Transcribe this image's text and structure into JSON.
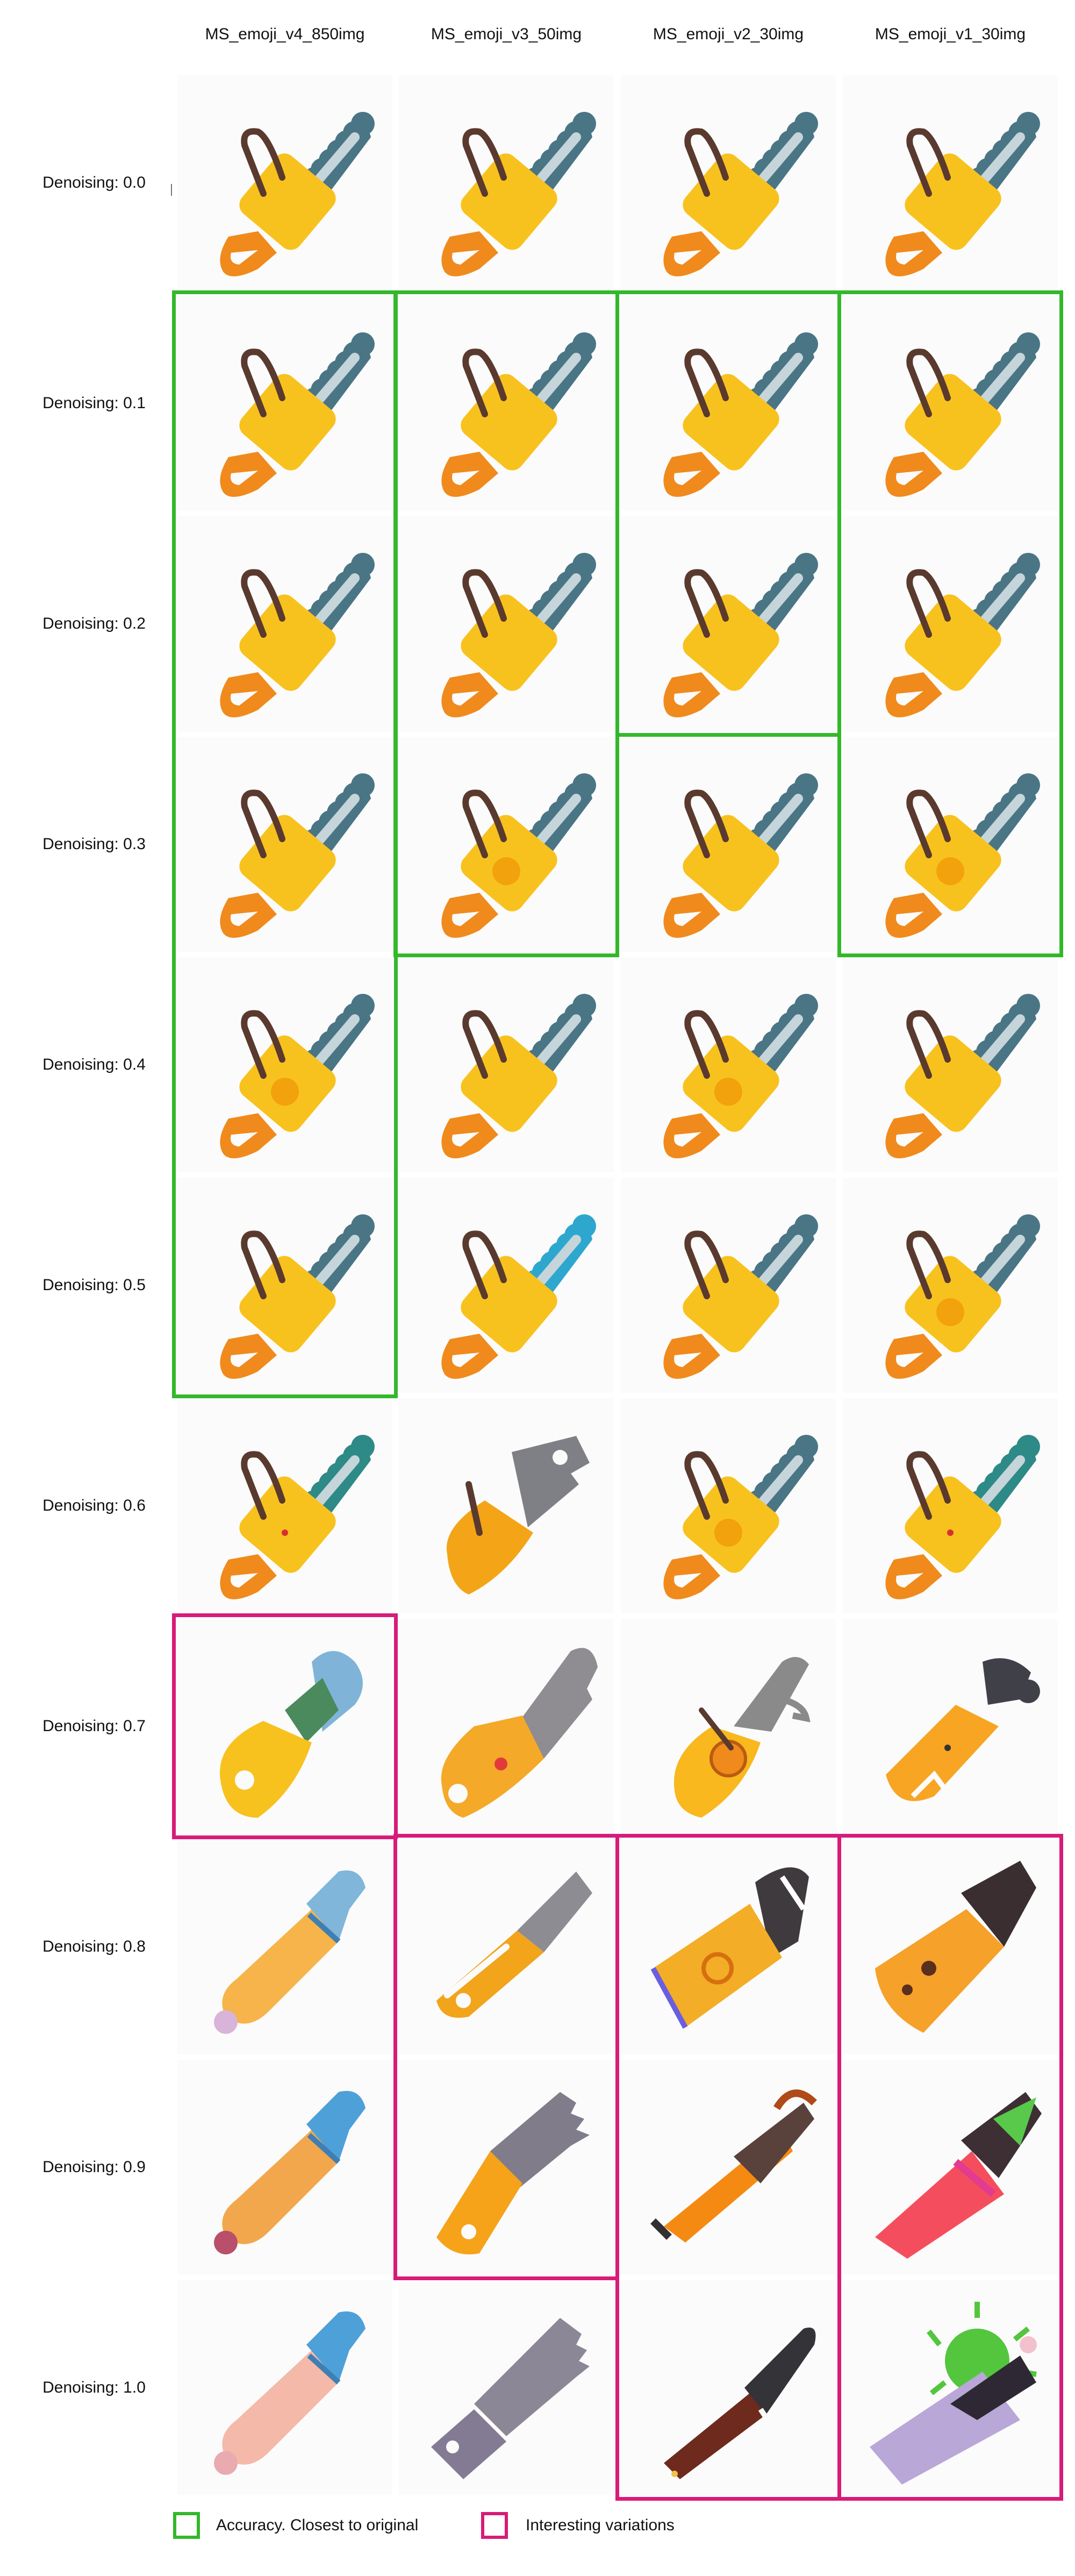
{
  "columns": [
    "MS_emoji_v4_850img",
    "MS_emoji_v3_50img",
    "MS_emoji_v2_30img",
    "MS_emoji_v1_30img"
  ],
  "rows": [
    "Denoising: 0.0",
    "Denoising: 0.1",
    "Denoising: 0.2",
    "Denoising: 0.3",
    "Denoising: 0.4",
    "Denoising: 0.5",
    "Denoising: 0.6",
    "Denoising: 0.7",
    "Denoising: 0.8",
    "Denoising: 0.9",
    "Denoising: 1.0"
  ],
  "icons": [
    [
      "chainsaw-icon",
      "chainsaw-icon",
      "chainsaw-icon",
      "chainsaw-icon"
    ],
    [
      "chainsaw-icon",
      "chainsaw-icon",
      "chainsaw-icon",
      "chainsaw-icon"
    ],
    [
      "chainsaw-icon",
      "chainsaw-icon",
      "chainsaw-icon",
      "chainsaw-icon"
    ],
    [
      "chainsaw-icon",
      "chainsaw-icon",
      "chainsaw-icon",
      "chainsaw-icon"
    ],
    [
      "chainsaw-icon",
      "chainsaw-icon",
      "chainsaw-icon",
      "chainsaw-icon"
    ],
    [
      "chainsaw-icon",
      "chainsaw-icon",
      "chainsaw-icon",
      "chainsaw-icon"
    ],
    [
      "distorted-chainsaw-icon",
      "cleaver-saw-icon",
      "chainsaw-icon",
      "distorted-chainsaw-icon"
    ],
    [
      "blob-tool-icon",
      "cleaver-icon",
      "wrench-saw-icon",
      "pipe-tool-icon"
    ],
    [
      "pencil-tool-icon",
      "utility-knife-icon",
      "folded-tool-icon",
      "block-tool-icon"
    ],
    [
      "pencil-tool-icon",
      "handsaw-icon",
      "hacksaw-icon",
      "red-arrow-tool-icon"
    ],
    [
      "pencil-tool-icon",
      "handsaw-icon",
      "knife-icon",
      "virus-cutter-icon"
    ]
  ],
  "boxes": [
    {
      "kind": "accuracy",
      "col": 0,
      "row_start": 1,
      "row_end": 5
    },
    {
      "kind": "accuracy",
      "col": 1,
      "row_start": 1,
      "row_end": 3
    },
    {
      "kind": "accuracy",
      "col": 2,
      "row_start": 1,
      "row_end": 2
    },
    {
      "kind": "accuracy",
      "col": 3,
      "row_start": 1,
      "row_end": 3
    },
    {
      "kind": "interesting",
      "col": 0,
      "row_start": 7,
      "row_end": 7
    },
    {
      "kind": "interesting",
      "col": 1,
      "row_start": 8,
      "row_end": 9
    },
    {
      "kind": "interesting",
      "col": 2,
      "row_start": 8,
      "row_end": 10
    },
    {
      "kind": "interesting",
      "col": 3,
      "row_start": 8,
      "row_end": 10
    }
  ],
  "legend": {
    "accuracy_label": "Accuracy. Closest to original",
    "interesting_label": "Interesting variations"
  },
  "colors": {
    "accuracy": "#33b82b",
    "interesting": "#d81b78",
    "body_yellow": "#f8c21e",
    "handle_orange": "#f08a1c",
    "blade_teal": "#4a7585",
    "chain_light": "#c5d5da",
    "handle_brown": "#5a3a2e"
  }
}
